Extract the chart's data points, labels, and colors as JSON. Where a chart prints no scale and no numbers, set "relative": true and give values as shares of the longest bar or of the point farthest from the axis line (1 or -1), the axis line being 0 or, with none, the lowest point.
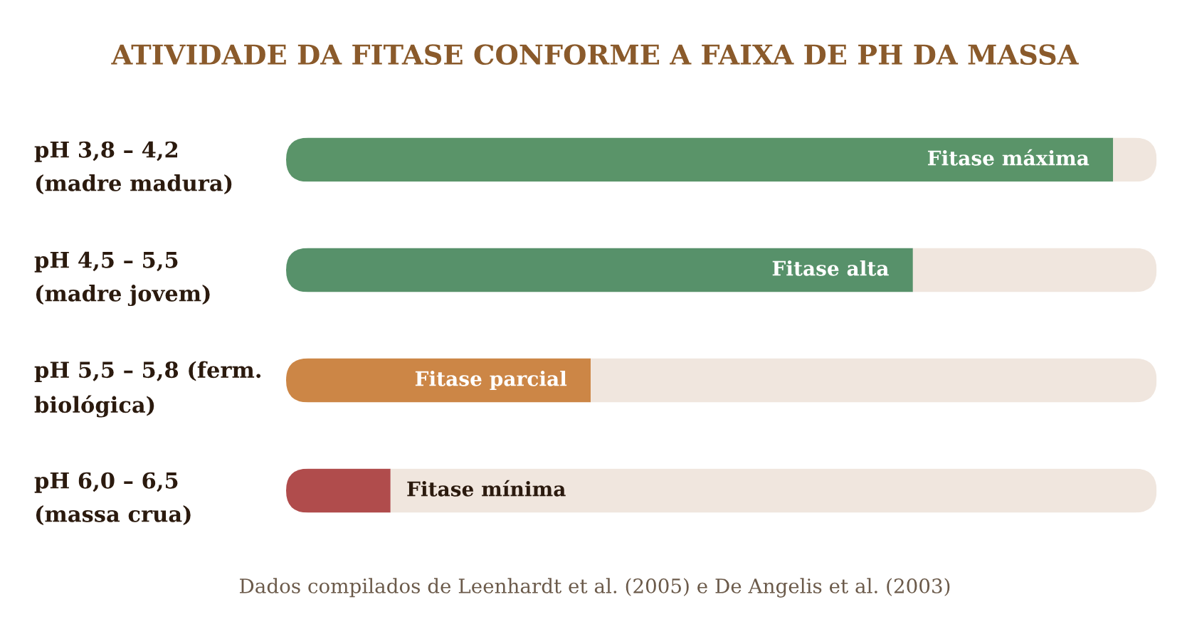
{
  "chart_data": {
    "type": "bar",
    "orientation": "horizontal",
    "relative": true,
    "stacked": true,
    "title": "ATIVIDADE DA FITASE CONFORME A FAIXA DE PH DA MASSA",
    "categories": [
      "pH 3,8 – 4,2 (madre madura)",
      "pH 4,5 – 5,5 (madre jovem)",
      "pH 5,5 – 5,8 (ferm. biológica)",
      "pH 6,0 – 6,5 (massa crua)"
    ],
    "series": [
      {
        "colors": [
          "#5a9469",
          "#57916a",
          "#cc8646",
          "#b04c4c"
        ],
        "values": [
          0.95,
          0.72,
          0.35,
          0.12
        ]
      },
      {
        "color": "#f0e6de",
        "values": [
          0.05,
          0.28,
          0.65,
          0.88
        ]
      }
    ],
    "annotations": [
      {
        "text": "Fitase máxima",
        "x": 0.95,
        "y": "pH 3,8 – 4,2 (madre madura)"
      },
      {
        "text": "Fitase alta",
        "x": 0.72,
        "y": "pH 4,5 – 5,5 (madre jovem)"
      },
      {
        "text": "Fitase parcial",
        "x": 0.35,
        "y": "pH 5,5 – 5,8 (ferm. biológica)"
      },
      {
        "text": "Fitase mínima",
        "x": 0.12,
        "y": "pH 6,0 – 6,5 (massa crua)"
      },
      "Dados compilados de Leenhardt et al. (2005) e De Angelis et al. (2003)"
    ]
  }
}
